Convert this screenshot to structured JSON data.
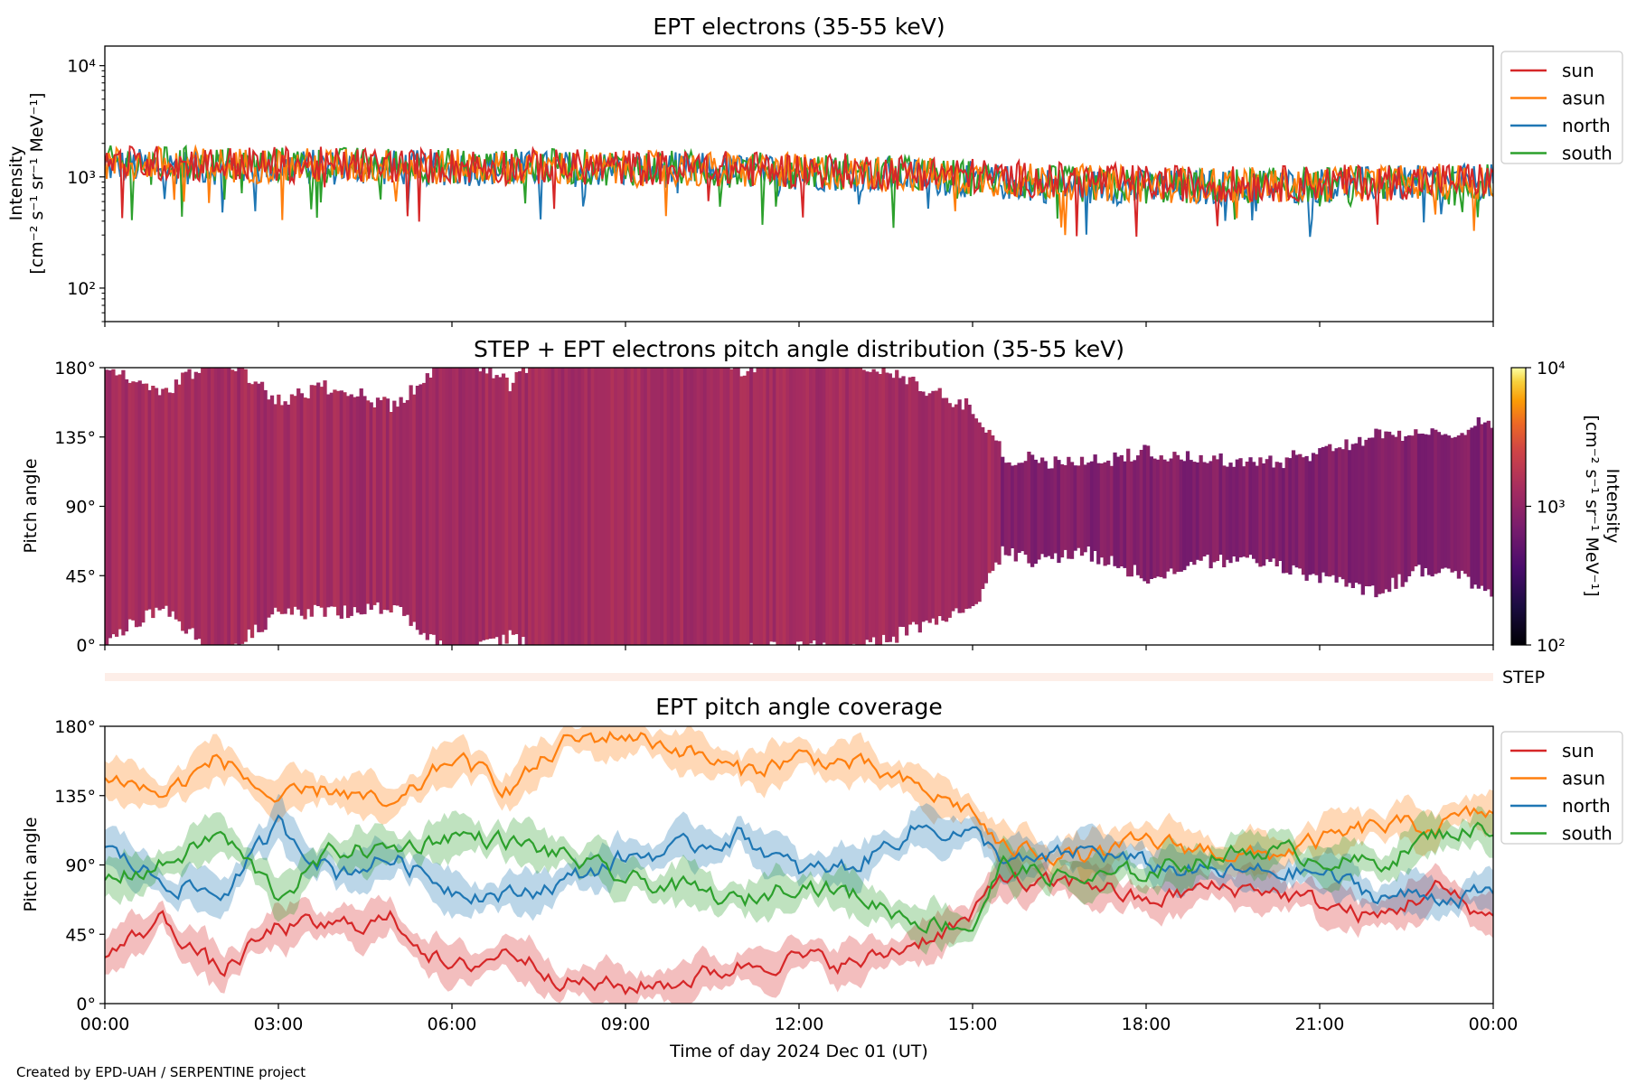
{
  "credit": "Created by EPD-UAH / SERPENTINE project",
  "colors": {
    "sun": "#d62728",
    "asun": "#ff7f0e",
    "north": "#1f77b4",
    "south": "#2ca02c"
  },
  "chart_data": [
    {
      "id": "intensity",
      "type": "line",
      "title": "EPT electrons (35-55 keV)",
      "ylabel_line1": "Intensity",
      "ylabel_line2": "[cm⁻² s⁻¹ sr⁻¹ MeV⁻¹]",
      "yscale": "log",
      "ylim": [
        50,
        15000
      ],
      "yticks": [
        {
          "value": 100,
          "label": "10²"
        },
        {
          "value": 1000,
          "label": "10³"
        },
        {
          "value": 10000,
          "label": "10⁴"
        }
      ],
      "xlim_hours": [
        0,
        24
      ],
      "legend_placement": "upper-right, outside",
      "grid": false,
      "series": [
        {
          "name": "sun",
          "x_hours": [
            0,
            2,
            4,
            6,
            8,
            10,
            12,
            14,
            16,
            18,
            20,
            22,
            24
          ],
          "values": [
            1350,
            1300,
            1280,
            1250,
            1230,
            1200,
            1150,
            1100,
            950,
            880,
            860,
            900,
            950
          ]
        },
        {
          "name": "asun",
          "x_hours": [
            0,
            2,
            4,
            6,
            8,
            10,
            12,
            14,
            16,
            18,
            20,
            22,
            24
          ],
          "values": [
            1300,
            1280,
            1250,
            1220,
            1200,
            1170,
            1120,
            1050,
            920,
            850,
            840,
            880,
            920
          ]
        },
        {
          "name": "north",
          "x_hours": [
            0,
            2,
            4,
            6,
            8,
            10,
            12,
            14,
            16,
            18,
            20,
            22,
            24
          ],
          "values": [
            1250,
            1230,
            1220,
            1200,
            1180,
            1150,
            1100,
            1020,
            850,
            800,
            820,
            860,
            900
          ]
        },
        {
          "name": "south",
          "x_hours": [
            0,
            2,
            4,
            6,
            8,
            10,
            12,
            14,
            16,
            18,
            20,
            22,
            24
          ],
          "values": [
            1320,
            1300,
            1280,
            1260,
            1230,
            1190,
            1130,
            1060,
            880,
            820,
            830,
            870,
            910
          ]
        }
      ]
    },
    {
      "id": "pad",
      "type": "heatmap",
      "title": "STEP + EPT electrons pitch angle distribution (35-55 keV)",
      "ylabel": "Pitch angle",
      "ylim": [
        0,
        180
      ],
      "yticks": [
        {
          "value": 0,
          "label": "0°"
        },
        {
          "value": 45,
          "label": "45°"
        },
        {
          "value": 90,
          "label": "90°"
        },
        {
          "value": 135,
          "label": "135°"
        },
        {
          "value": 180,
          "label": "180°"
        }
      ],
      "colorbar": {
        "label_line1": "Intensity",
        "label_line2": "[cm⁻² s⁻¹ sr⁻¹ MeV⁻¹]",
        "scale": "log",
        "range": [
          100,
          10000
        ],
        "ticks": [
          {
            "value": 100,
            "label": "10²"
          },
          {
            "value": 1000,
            "label": "10³"
          },
          {
            "value": 10000,
            "label": "10⁴"
          }
        ],
        "colormap": "inferno-like"
      },
      "typical_intensity_before_1530": 1300,
      "typical_intensity_after_1530": 800
    },
    {
      "id": "step",
      "type": "heatmap",
      "label": "STEP"
    },
    {
      "id": "coverage",
      "type": "area",
      "title": "EPT pitch angle coverage",
      "ylabel": "Pitch angle",
      "xlabel": "Time of day 2024 Dec 01 (UT)",
      "ylim": [
        0,
        180
      ],
      "yticks": [
        {
          "value": 0,
          "label": "0°"
        },
        {
          "value": 45,
          "label": "45°"
        },
        {
          "value": 90,
          "label": "90°"
        },
        {
          "value": 135,
          "label": "135°"
        },
        {
          "value": 180,
          "label": "180°"
        }
      ],
      "xticks": [
        "00:00",
        "03:00",
        "06:00",
        "09:00",
        "12:00",
        "15:00",
        "18:00",
        "21:00",
        "00:00"
      ],
      "xlim_hours": [
        0,
        24
      ],
      "legend_placement": "upper-right, outside",
      "series": [
        {
          "name": "sun",
          "x_hours": [
            0,
            1,
            2,
            3,
            4,
            5,
            6,
            7,
            8,
            9,
            10,
            11,
            12,
            13,
            14,
            15,
            15.5,
            16,
            17,
            18,
            19,
            20,
            21,
            22,
            23,
            24
          ],
          "values": [
            30,
            55,
            20,
            50,
            50,
            55,
            20,
            35,
            15,
            10,
            15,
            25,
            30,
            25,
            40,
            55,
            85,
            75,
            80,
            65,
            75,
            75,
            65,
            55,
            75,
            55
          ]
        },
        {
          "name": "asun",
          "x_hours": [
            0,
            1,
            2,
            3,
            4,
            5,
            6,
            7,
            8,
            9,
            10,
            11,
            12,
            13,
            14,
            15,
            15.5,
            16,
            17,
            18,
            19,
            20,
            21,
            22,
            23,
            24
          ],
          "values": [
            150,
            135,
            160,
            130,
            140,
            125,
            160,
            140,
            170,
            175,
            165,
            150,
            160,
            155,
            140,
            125,
            100,
            100,
            95,
            105,
            100,
            95,
            105,
            115,
            115,
            125
          ]
        },
        {
          "name": "north",
          "x_hours": [
            0,
            1,
            2,
            3,
            4,
            5,
            6,
            7,
            8,
            9,
            10,
            11,
            12,
            13,
            14,
            15,
            15.5,
            16,
            17,
            18,
            19,
            20,
            21,
            22,
            23,
            24
          ],
          "values": [
            100,
            80,
            70,
            115,
            85,
            95,
            75,
            70,
            80,
            95,
            100,
            110,
            85,
            90,
            115,
            110,
            95,
            90,
            100,
            90,
            85,
            85,
            85,
            70,
            70,
            70
          ]
        },
        {
          "name": "south",
          "x_hours": [
            0,
            1,
            2,
            3,
            4,
            5,
            6,
            7,
            8,
            9,
            10,
            11,
            12,
            13,
            14,
            15,
            15.5,
            16,
            17,
            18,
            19,
            20,
            21,
            22,
            23,
            24
          ],
          "values": [
            80,
            90,
            110,
            70,
            100,
            100,
            110,
            105,
            95,
            80,
            75,
            65,
            80,
            70,
            55,
            50,
            90,
            85,
            80,
            85,
            95,
            100,
            95,
            90,
            110,
            115
          ]
        }
      ]
    }
  ]
}
